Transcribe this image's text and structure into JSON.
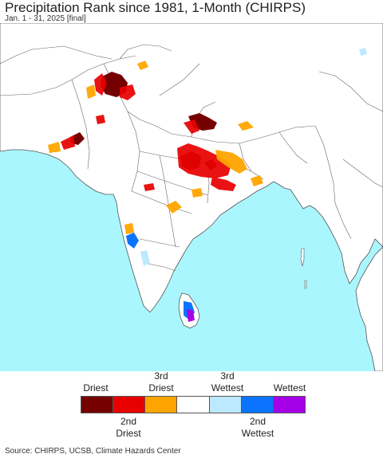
{
  "title": "Precipitation Rank since 1981, 1-Month (CHIRPS)",
  "subtitle": "Jan. 1 - 31, 2025 [final]",
  "colors": {
    "ocean": "#aaf6ff",
    "land": "#ffffff",
    "border": "#666666",
    "driest": "#750000",
    "second_driest": "#e80000",
    "third_driest": "#ffa500",
    "normal": "#ffffff",
    "third_wettest": "#bde9ff",
    "second_wettest": "#0a74ff",
    "wettest": "#a600e8"
  },
  "legend": {
    "top_labels": {
      "driest": "Driest",
      "third_driest": "3rd\nDriest",
      "third_wettest": "3rd\nWettest",
      "wettest": "Wettest"
    },
    "bottom_labels": {
      "second_driest": "2nd\nDriest",
      "second_wettest": "2nd\nWettest"
    }
  },
  "source": "Source: CHIRPS, UCSB, Climate Hazards Center"
}
